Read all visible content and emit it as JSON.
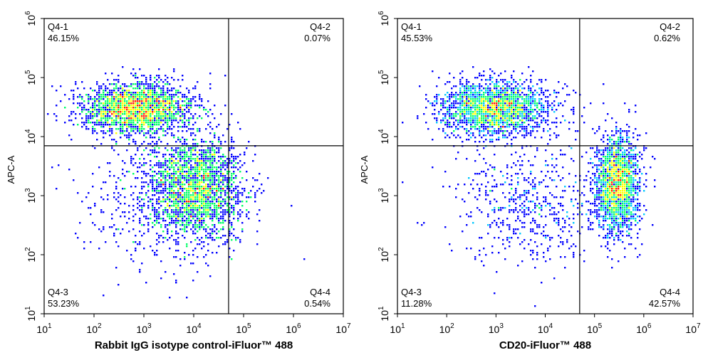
{
  "chart_data": [
    {
      "type": "scatter",
      "subtype": "flow-cytometry-density-dot-plot",
      "xlabel": "Rabbit IgG isotype control-iFluor™ 488",
      "ylabel": "APC-A",
      "x_scale": "log",
      "y_scale": "log",
      "xlim": [
        10,
        10000000
      ],
      "ylim": [
        10,
        1000000
      ],
      "x_ticks": [
        {
          "base": "10",
          "exp": "1"
        },
        {
          "base": "10",
          "exp": "2"
        },
        {
          "base": "10",
          "exp": "3"
        },
        {
          "base": "10",
          "exp": "4"
        },
        {
          "base": "10",
          "exp": "5"
        },
        {
          "base": "10",
          "exp": "6"
        },
        {
          "base": "10",
          "exp": "7"
        }
      ],
      "y_ticks": [
        {
          "base": "10",
          "exp": "1"
        },
        {
          "base": "10",
          "exp": "2"
        },
        {
          "base": "10",
          "exp": "3"
        },
        {
          "base": "10",
          "exp": "4"
        },
        {
          "base": "10",
          "exp": "5"
        },
        {
          "base": "10",
          "exp": "6"
        }
      ],
      "gate": {
        "x": 50000,
        "y": 7000
      },
      "quadrants": [
        {
          "name": "Q4-1",
          "percent": "46.15%",
          "position": "top-left"
        },
        {
          "name": "Q4-2",
          "percent": "0.07%",
          "position": "top-right"
        },
        {
          "name": "Q4-3",
          "percent": "53.23%",
          "position": "bottom-left"
        },
        {
          "name": "Q4-4",
          "percent": "0.54%",
          "position": "bottom-right"
        }
      ],
      "populations": [
        {
          "center_x": 700,
          "center_y": 30000,
          "spread_log_x": 0.55,
          "spread_log_y": 0.22,
          "fraction": 0.46
        },
        {
          "center_x": 12000,
          "center_y": 1300,
          "spread_log_x": 0.45,
          "spread_log_y": 0.42,
          "fraction": 0.44
        },
        {
          "center_x": 2000,
          "center_y": 1000,
          "spread_log_x": 0.75,
          "spread_log_y": 0.6,
          "fraction": 0.1
        }
      ]
    },
    {
      "type": "scatter",
      "subtype": "flow-cytometry-density-dot-plot",
      "xlabel": "CD20-iFluor™ 488",
      "ylabel": "APC-A",
      "x_scale": "log",
      "y_scale": "log",
      "xlim": [
        10,
        10000000
      ],
      "ylim": [
        10,
        1000000
      ],
      "x_ticks": [
        {
          "base": "10",
          "exp": "1"
        },
        {
          "base": "10",
          "exp": "2"
        },
        {
          "base": "10",
          "exp": "3"
        },
        {
          "base": "10",
          "exp": "4"
        },
        {
          "base": "10",
          "exp": "5"
        },
        {
          "base": "10",
          "exp": "6"
        },
        {
          "base": "10",
          "exp": "7"
        }
      ],
      "y_ticks": [
        {
          "base": "10",
          "exp": "1"
        },
        {
          "base": "10",
          "exp": "2"
        },
        {
          "base": "10",
          "exp": "3"
        },
        {
          "base": "10",
          "exp": "4"
        },
        {
          "base": "10",
          "exp": "5"
        },
        {
          "base": "10",
          "exp": "6"
        }
      ],
      "gate": {
        "x": 50000,
        "y": 7000
      },
      "quadrants": [
        {
          "name": "Q4-1",
          "percent": "45.53%",
          "position": "top-left"
        },
        {
          "name": "Q4-2",
          "percent": "0.62%",
          "position": "top-right"
        },
        {
          "name": "Q4-3",
          "percent": "11.28%",
          "position": "bottom-left"
        },
        {
          "name": "Q4-4",
          "percent": "42.57%",
          "position": "bottom-right"
        }
      ],
      "populations": [
        {
          "center_x": 1000,
          "center_y": 30000,
          "spread_log_x": 0.55,
          "spread_log_y": 0.22,
          "fraction": 0.46
        },
        {
          "center_x": 300000,
          "center_y": 1500,
          "spread_log_x": 0.22,
          "spread_log_y": 0.4,
          "fraction": 0.42
        },
        {
          "center_x": 5000,
          "center_y": 800,
          "spread_log_x": 0.75,
          "spread_log_y": 0.55,
          "fraction": 0.12
        }
      ]
    }
  ],
  "colors": {
    "low": "#0000ff",
    "mid_low": "#00c8ff",
    "mid": "#00ff66",
    "mid_high": "#ffff00",
    "high": "#ff2000"
  }
}
